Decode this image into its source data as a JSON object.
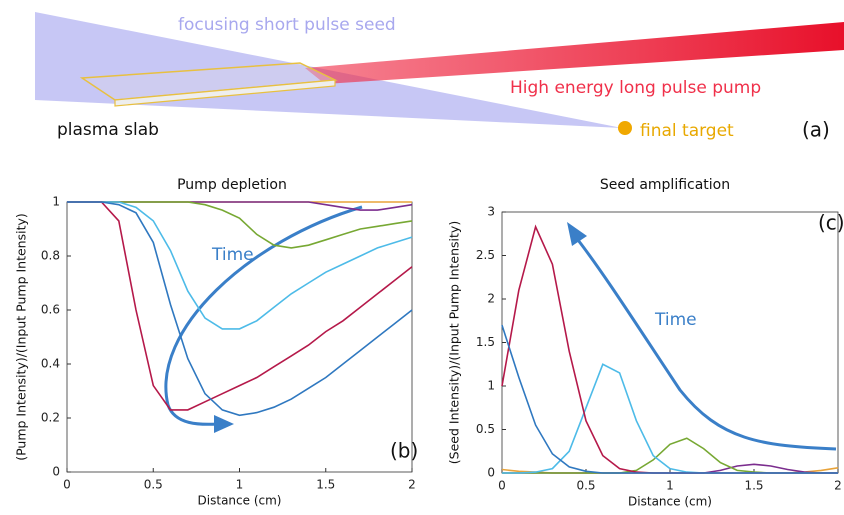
{
  "diagram": {
    "seed_label": "focusing short pulse seed",
    "pump_label": "High energy long pulse pump",
    "slab_label": "plasma slab",
    "target_label": "final target",
    "panel_label": "(a)"
  },
  "chart_data": [
    {
      "type": "line",
      "title": "Pump depletion",
      "x_label": "Distance (cm)",
      "y_label": "(Pump Intensity)/(Input Pump Intensity)",
      "annotations": [
        "Time",
        "(b)"
      ],
      "x": [
        0,
        0.1,
        0.2,
        0.3,
        0.4,
        0.5,
        0.6,
        0.7,
        0.8,
        0.9,
        1.0,
        1.1,
        1.2,
        1.3,
        1.4,
        1.5,
        1.6,
        1.7,
        1.8,
        1.9,
        2.0
      ],
      "xlim": [
        0,
        2
      ],
      "xticks": [
        0,
        0.5,
        1,
        1.5,
        2
      ],
      "ylim": [
        0,
        1
      ],
      "yticks": [
        0,
        0.2,
        0.4,
        0.6,
        0.8,
        1
      ],
      "series": [
        {
          "color": "#e8a33a",
          "values": [
            1,
            1,
            1,
            1,
            1,
            1,
            1,
            1,
            1,
            1,
            1,
            1,
            1,
            1,
            1,
            1,
            1,
            1,
            1,
            1,
            1
          ]
        },
        {
          "color": "#7b2d8e",
          "values": [
            1,
            1,
            1,
            1,
            1,
            1,
            1,
            1,
            1,
            1,
            1,
            1,
            1,
            1,
            1,
            0.99,
            0.98,
            0.97,
            0.97,
            0.98,
            0.99
          ]
        },
        {
          "color": "#77a833",
          "values": [
            1,
            1,
            1,
            1,
            1,
            1,
            1,
            1,
            0.99,
            0.97,
            0.94,
            0.88,
            0.84,
            0.83,
            0.84,
            0.86,
            0.88,
            0.9,
            0.91,
            0.92,
            0.93
          ]
        },
        {
          "color": "#4dbbe8",
          "values": [
            1,
            1,
            1,
            1,
            0.98,
            0.93,
            0.82,
            0.67,
            0.57,
            0.53,
            0.53,
            0.56,
            0.61,
            0.66,
            0.7,
            0.74,
            0.77,
            0.8,
            0.83,
            0.85,
            0.87
          ]
        },
        {
          "color": "#b5194a",
          "values": [
            1,
            1,
            1,
            0.93,
            0.6,
            0.32,
            0.23,
            0.23,
            0.26,
            0.29,
            0.32,
            0.35,
            0.39,
            0.43,
            0.47,
            0.52,
            0.56,
            0.61,
            0.66,
            0.71,
            0.76
          ]
        },
        {
          "color": "#2f78c0",
          "values": [
            1,
            1,
            1,
            0.99,
            0.96,
            0.85,
            0.62,
            0.42,
            0.29,
            0.23,
            0.21,
            0.22,
            0.24,
            0.27,
            0.31,
            0.35,
            0.4,
            0.45,
            0.5,
            0.55,
            0.6
          ]
        }
      ]
    },
    {
      "type": "line",
      "title": "Seed amplification",
      "x_label": "Distance (cm)",
      "y_label": "(Seed Intensity)/(Input Pump Intensity)",
      "annotations": [
        "Time",
        "(c)"
      ],
      "x": [
        0,
        0.1,
        0.2,
        0.3,
        0.4,
        0.5,
        0.6,
        0.7,
        0.8,
        0.9,
        1.0,
        1.1,
        1.2,
        1.3,
        1.4,
        1.5,
        1.6,
        1.7,
        1.8,
        1.9,
        2.0
      ],
      "xlim": [
        0,
        2
      ],
      "xticks": [
        0,
        0.5,
        1,
        1.5,
        2
      ],
      "ylim": [
        0,
        3
      ],
      "yticks": [
        0,
        0.5,
        1,
        1.5,
        2,
        2.5,
        3
      ],
      "series": [
        {
          "color": "#e8a33a",
          "values": [
            0.04,
            0.02,
            0.01,
            0,
            0,
            0,
            0,
            0,
            0,
            0,
            0,
            0,
            0,
            0,
            0,
            0,
            0,
            0,
            0.01,
            0.03,
            0.06
          ]
        },
        {
          "color": "#7b2d8e",
          "values": [
            0,
            0,
            0,
            0,
            0,
            0,
            0,
            0,
            0,
            0,
            0,
            0,
            0,
            0.03,
            0.08,
            0.1,
            0.08,
            0.04,
            0.01,
            0,
            0
          ]
        },
        {
          "color": "#77a833",
          "values": [
            0,
            0,
            0,
            0,
            0,
            0,
            0,
            0,
            0.03,
            0.15,
            0.33,
            0.4,
            0.28,
            0.12,
            0.03,
            0.01,
            0,
            0,
            0,
            0,
            0
          ]
        },
        {
          "color": "#4dbbe8",
          "values": [
            0,
            0,
            0.01,
            0.05,
            0.25,
            0.75,
            1.25,
            1.15,
            0.6,
            0.2,
            0.05,
            0.01,
            0,
            0,
            0,
            0,
            0,
            0,
            0,
            0,
            0
          ]
        },
        {
          "color": "#b5194a",
          "values": [
            1.0,
            2.1,
            2.83,
            2.4,
            1.4,
            0.6,
            0.2,
            0.05,
            0.01,
            0,
            0,
            0,
            0,
            0,
            0,
            0,
            0,
            0,
            0,
            0,
            0
          ]
        },
        {
          "color": "#2f78c0",
          "values": [
            1.7,
            1.1,
            0.55,
            0.22,
            0.07,
            0.02,
            0,
            0,
            0,
            0,
            0,
            0,
            0,
            0,
            0,
            0,
            0,
            0,
            0,
            0,
            0
          ]
        }
      ]
    }
  ]
}
